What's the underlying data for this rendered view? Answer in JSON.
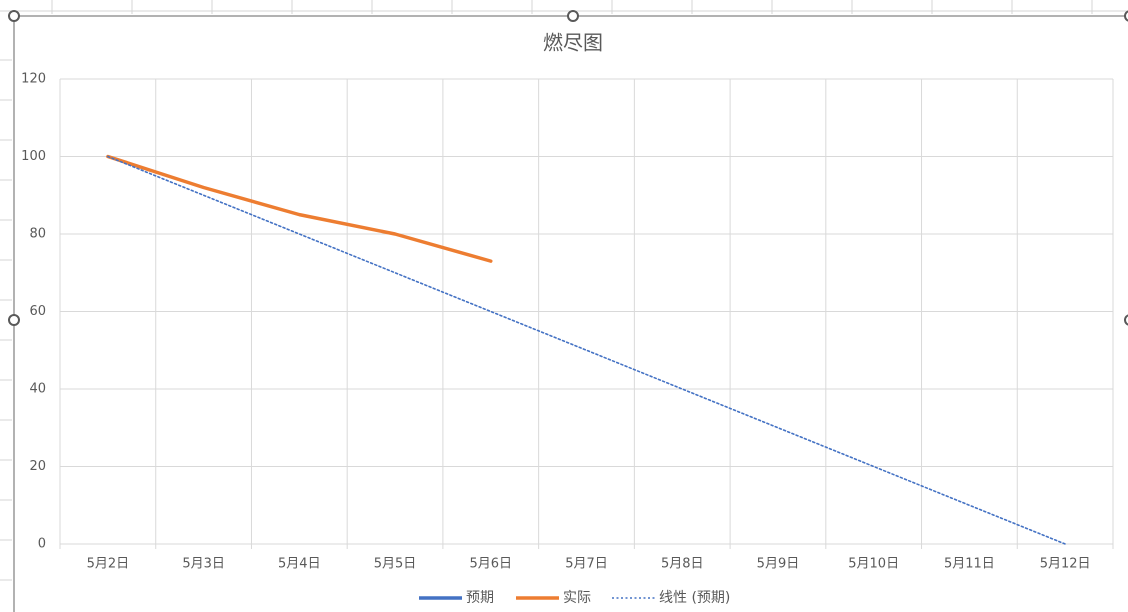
{
  "chart_data": {
    "type": "line",
    "title": "燃尽图",
    "categories": [
      "5月2日",
      "5月3日",
      "5月4日",
      "5月5日",
      "5月6日",
      "5月7日",
      "5月8日",
      "5月9日",
      "5月10日",
      "5月11日",
      "5月12日"
    ],
    "series": [
      {
        "name": "预期",
        "color": "#4472c4",
        "style": "solid",
        "values": [
          null,
          null,
          null,
          null,
          null,
          null,
          null,
          null,
          null,
          null,
          null
        ]
      },
      {
        "name": "实际",
        "color": "#ed7d31",
        "style": "solid",
        "values": [
          100,
          92,
          85,
          80,
          73,
          null,
          null,
          null,
          null,
          null,
          null
        ]
      },
      {
        "name": "线性 (预期)",
        "color": "#4472c4",
        "style": "dotted",
        "values": [
          100,
          90,
          80,
          70,
          60,
          50,
          40,
          30,
          20,
          10,
          0
        ]
      }
    ],
    "ylim": [
      0,
      120
    ],
    "yticks": [
      0,
      20,
      40,
      60,
      80,
      100,
      120
    ],
    "grid": true,
    "legend": "bottom"
  }
}
